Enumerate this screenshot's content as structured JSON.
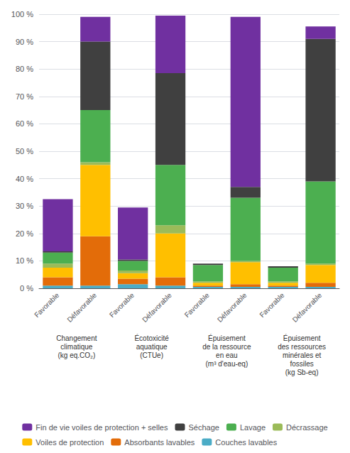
{
  "chart_data": {
    "type": "bar",
    "stacked": true,
    "categories": [
      "Favorable",
      "Défavorable",
      "Favorable",
      "Défavorable",
      "Favorable",
      "Défavorable",
      "Favorable",
      "Défavorable"
    ],
    "groups": [
      "Changement\nclimatique\n(kg eq.CO₂)",
      "Écotoxicité\naquatique\n(CTUe)",
      "Épuisement\nde la ressource\nen eau\n(m³ d'eau-eq)",
      "Épuisement\ndes ressources\nminérales et\nfossiles\n(kg Sb-eq)"
    ],
    "series": [
      {
        "name": "Couches lavables",
        "color": "#4BACC6",
        "values": [
          1.0,
          1.0,
          1.5,
          1.0,
          0.5,
          0.5,
          0.5,
          0.5
        ]
      },
      {
        "name": "Absorbants lavables",
        "color": "#E36C09",
        "values": [
          3.0,
          18.0,
          2.0,
          3.0,
          0.5,
          1.0,
          0.5,
          1.5
        ]
      },
      {
        "name": "Voiles de protection",
        "color": "#FFBF00",
        "values": [
          3.5,
          26.0,
          2.0,
          16.0,
          1.0,
          8.0,
          1.0,
          6.5
        ]
      },
      {
        "name": "Décrassage",
        "color": "#9BBB59",
        "values": [
          1.5,
          1.0,
          1.0,
          3.0,
          0.5,
          0.5,
          0.5,
          0.5
        ]
      },
      {
        "name": "Lavage",
        "color": "#4CAF50",
        "values": [
          4.0,
          19.0,
          3.5,
          22.0,
          6.0,
          23.0,
          5.0,
          30.0
        ]
      },
      {
        "name": "Séchage",
        "color": "#404040",
        "values": [
          0.5,
          25.0,
          0.5,
          33.5,
          0.5,
          4.0,
          0.5,
          52.0
        ]
      },
      {
        "name": "Fin de vie voiles de protection + selles",
        "color": "#7030A0",
        "values": [
          19.0,
          9.0,
          19.0,
          21.0,
          0.0,
          62.0,
          0.0,
          4.5
        ]
      }
    ],
    "ylim": [
      0,
      100
    ],
    "yticks": [
      {
        "value": 0,
        "label": "0 %"
      },
      {
        "value": 10,
        "label": "10 %"
      },
      {
        "value": 20,
        "label": "20 %"
      },
      {
        "value": 30,
        "label": "30 %"
      },
      {
        "value": 40,
        "label": "40 %"
      },
      {
        "value": 50,
        "label": "50 %"
      },
      {
        "value": 60,
        "label": "60 %"
      },
      {
        "value": 70,
        "label": "70 %"
      },
      {
        "value": 80,
        "label": "80 %"
      },
      {
        "value": 90,
        "label": "90 %"
      },
      {
        "value": 100,
        "label": "100 %"
      }
    ],
    "grid": true,
    "legend": "bottom"
  }
}
